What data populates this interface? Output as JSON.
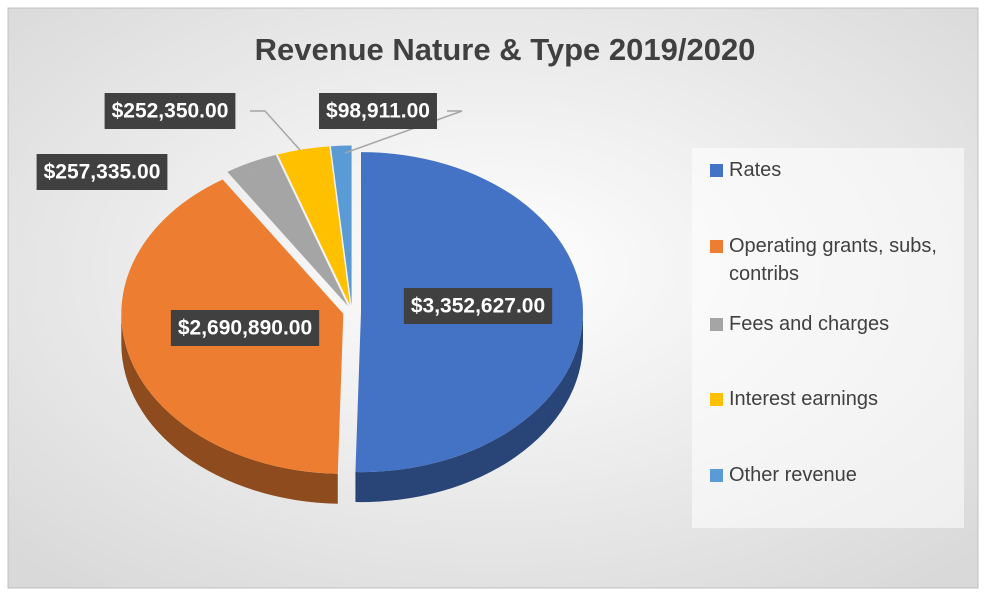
{
  "chart_data": {
    "type": "pie",
    "title": "Revenue Nature & Type 2019/2020",
    "categories": [
      "Rates",
      "Operating grants, subs, contribs",
      "Fees and charges",
      "Interest earnings",
      "Other revenue"
    ],
    "values": [
      3352627,
      2690890,
      257335,
      252350,
      98911
    ],
    "value_labels": [
      "$3,352,627.00",
      "$2,690,890.00",
      "$257,335.00",
      "$252,350.00",
      "$98,911.00"
    ],
    "colors": [
      "#4472c4",
      "#ed7d31",
      "#a5a5a5",
      "#ffc000",
      "#5b9bd5"
    ],
    "legend": "right"
  }
}
